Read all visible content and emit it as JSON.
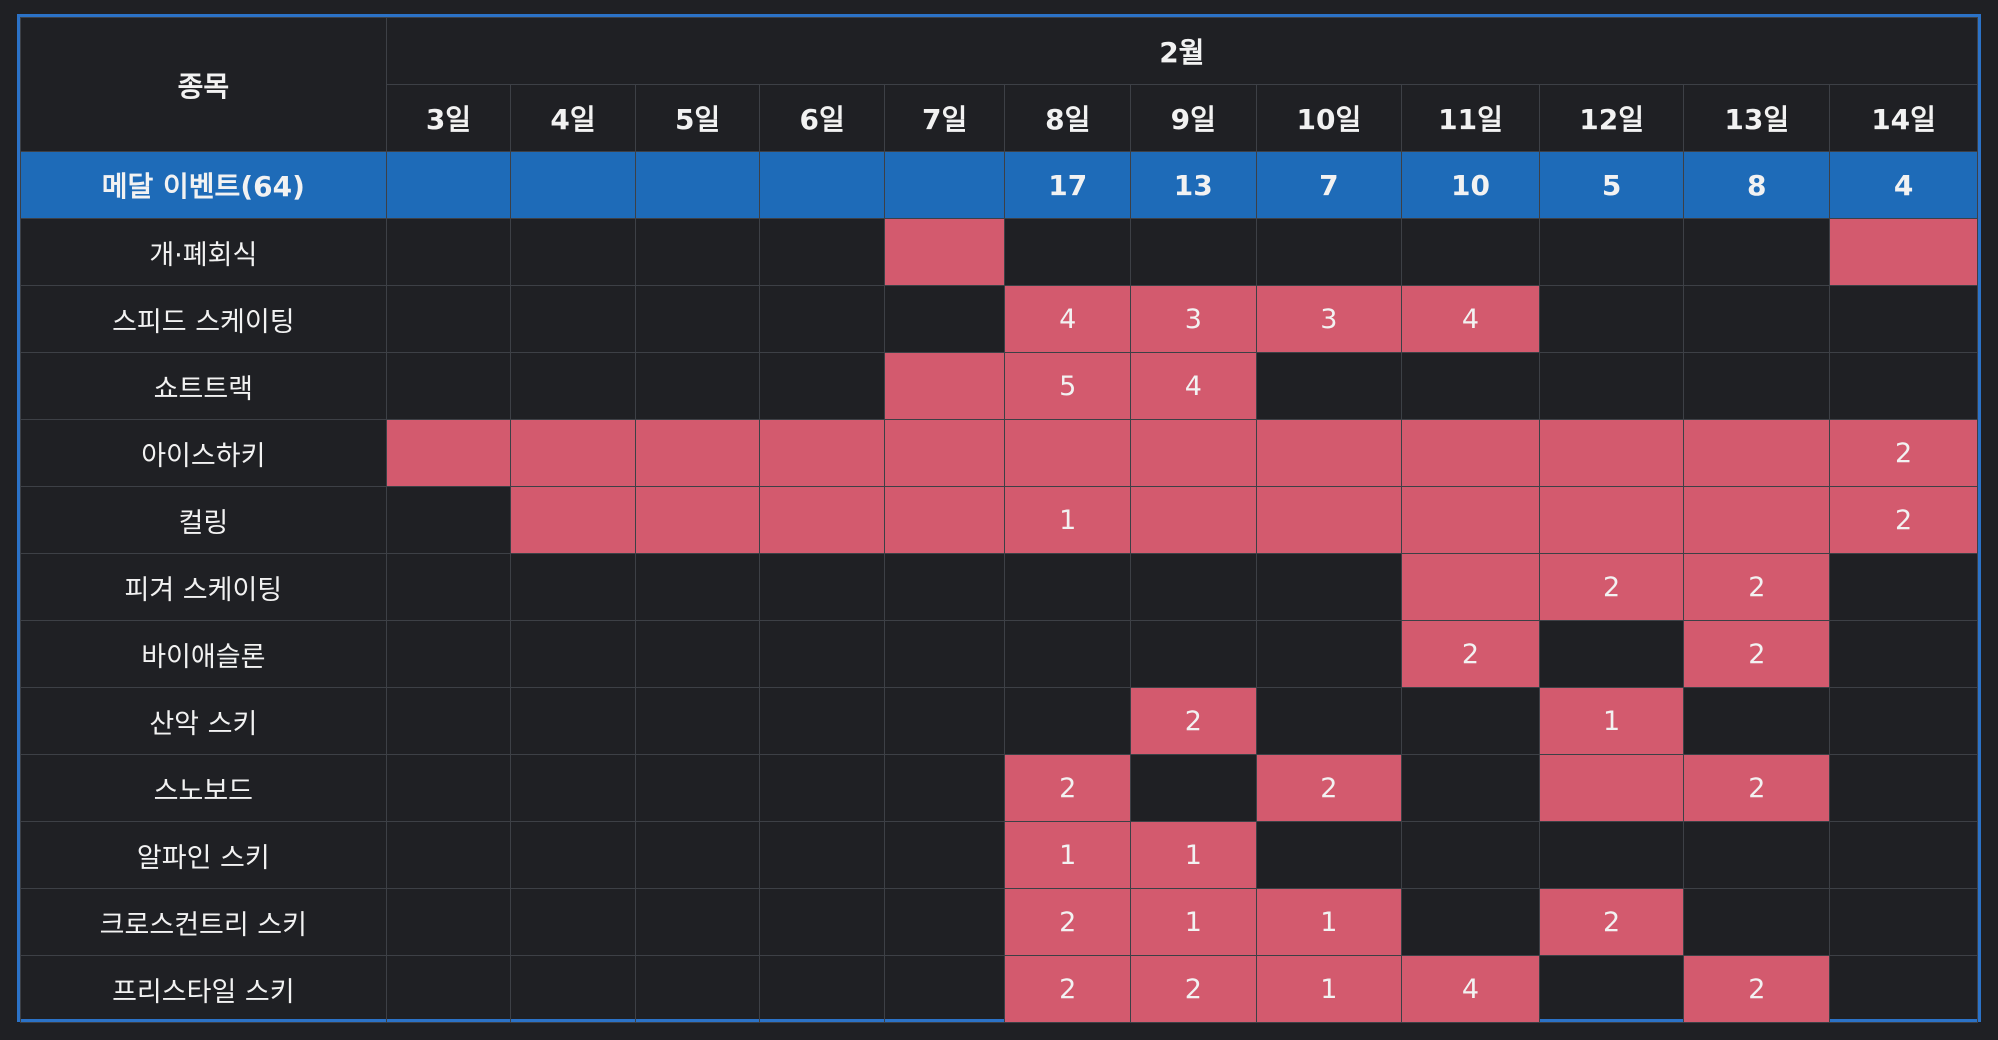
{
  "header": {
    "sport_label": "종목",
    "month_label": "2월",
    "days": [
      "3일",
      "4일",
      "5일",
      "6일",
      "7일",
      "8일",
      "9일",
      "10일",
      "11일",
      "12일",
      "13일",
      "14일"
    ]
  },
  "medal_row": {
    "label": "메달 이벤트(64)",
    "values": [
      "",
      "",
      "",
      "",
      "",
      "17",
      "13",
      "7",
      "10",
      "5",
      "8",
      "4"
    ]
  },
  "rows": [
    {
      "name": "개·폐회식",
      "cells": [
        {
          "on": false,
          "v": ""
        },
        {
          "on": false,
          "v": ""
        },
        {
          "on": false,
          "v": ""
        },
        {
          "on": false,
          "v": ""
        },
        {
          "on": true,
          "v": ""
        },
        {
          "on": false,
          "v": ""
        },
        {
          "on": false,
          "v": ""
        },
        {
          "on": false,
          "v": ""
        },
        {
          "on": false,
          "v": ""
        },
        {
          "on": false,
          "v": ""
        },
        {
          "on": false,
          "v": ""
        },
        {
          "on": true,
          "v": ""
        }
      ]
    },
    {
      "name": "스피드 스케이팅",
      "cells": [
        {
          "on": false,
          "v": ""
        },
        {
          "on": false,
          "v": ""
        },
        {
          "on": false,
          "v": ""
        },
        {
          "on": false,
          "v": ""
        },
        {
          "on": false,
          "v": ""
        },
        {
          "on": true,
          "v": "4"
        },
        {
          "on": true,
          "v": "3"
        },
        {
          "on": true,
          "v": "3"
        },
        {
          "on": true,
          "v": "4"
        },
        {
          "on": false,
          "v": ""
        },
        {
          "on": false,
          "v": ""
        },
        {
          "on": false,
          "v": ""
        }
      ]
    },
    {
      "name": "쇼트트랙",
      "cells": [
        {
          "on": false,
          "v": ""
        },
        {
          "on": false,
          "v": ""
        },
        {
          "on": false,
          "v": ""
        },
        {
          "on": false,
          "v": ""
        },
        {
          "on": true,
          "v": ""
        },
        {
          "on": true,
          "v": "5"
        },
        {
          "on": true,
          "v": "4"
        },
        {
          "on": false,
          "v": ""
        },
        {
          "on": false,
          "v": ""
        },
        {
          "on": false,
          "v": ""
        },
        {
          "on": false,
          "v": ""
        },
        {
          "on": false,
          "v": ""
        }
      ]
    },
    {
      "name": "아이스하키",
      "cells": [
        {
          "on": true,
          "v": ""
        },
        {
          "on": true,
          "v": ""
        },
        {
          "on": true,
          "v": ""
        },
        {
          "on": true,
          "v": ""
        },
        {
          "on": true,
          "v": ""
        },
        {
          "on": true,
          "v": ""
        },
        {
          "on": true,
          "v": ""
        },
        {
          "on": true,
          "v": ""
        },
        {
          "on": true,
          "v": ""
        },
        {
          "on": true,
          "v": ""
        },
        {
          "on": true,
          "v": ""
        },
        {
          "on": true,
          "v": "2"
        }
      ]
    },
    {
      "name": "컬링",
      "cells": [
        {
          "on": false,
          "v": ""
        },
        {
          "on": true,
          "v": ""
        },
        {
          "on": true,
          "v": ""
        },
        {
          "on": true,
          "v": ""
        },
        {
          "on": true,
          "v": ""
        },
        {
          "on": true,
          "v": "1"
        },
        {
          "on": true,
          "v": ""
        },
        {
          "on": true,
          "v": ""
        },
        {
          "on": true,
          "v": ""
        },
        {
          "on": true,
          "v": ""
        },
        {
          "on": true,
          "v": ""
        },
        {
          "on": true,
          "v": "2"
        }
      ]
    },
    {
      "name": "피겨 스케이팅",
      "cells": [
        {
          "on": false,
          "v": ""
        },
        {
          "on": false,
          "v": ""
        },
        {
          "on": false,
          "v": ""
        },
        {
          "on": false,
          "v": ""
        },
        {
          "on": false,
          "v": ""
        },
        {
          "on": false,
          "v": ""
        },
        {
          "on": false,
          "v": ""
        },
        {
          "on": false,
          "v": ""
        },
        {
          "on": true,
          "v": ""
        },
        {
          "on": true,
          "v": "2"
        },
        {
          "on": true,
          "v": "2"
        },
        {
          "on": false,
          "v": ""
        }
      ]
    },
    {
      "name": "바이애슬론",
      "cells": [
        {
          "on": false,
          "v": ""
        },
        {
          "on": false,
          "v": ""
        },
        {
          "on": false,
          "v": ""
        },
        {
          "on": false,
          "v": ""
        },
        {
          "on": false,
          "v": ""
        },
        {
          "on": false,
          "v": ""
        },
        {
          "on": false,
          "v": ""
        },
        {
          "on": false,
          "v": ""
        },
        {
          "on": true,
          "v": "2"
        },
        {
          "on": false,
          "v": ""
        },
        {
          "on": true,
          "v": "2"
        },
        {
          "on": false,
          "v": ""
        }
      ]
    },
    {
      "name": "산악 스키",
      "cells": [
        {
          "on": false,
          "v": ""
        },
        {
          "on": false,
          "v": ""
        },
        {
          "on": false,
          "v": ""
        },
        {
          "on": false,
          "v": ""
        },
        {
          "on": false,
          "v": ""
        },
        {
          "on": false,
          "v": ""
        },
        {
          "on": true,
          "v": "2"
        },
        {
          "on": false,
          "v": ""
        },
        {
          "on": false,
          "v": ""
        },
        {
          "on": true,
          "v": "1"
        },
        {
          "on": false,
          "v": ""
        },
        {
          "on": false,
          "v": ""
        }
      ]
    },
    {
      "name": "스노보드",
      "cells": [
        {
          "on": false,
          "v": ""
        },
        {
          "on": false,
          "v": ""
        },
        {
          "on": false,
          "v": ""
        },
        {
          "on": false,
          "v": ""
        },
        {
          "on": false,
          "v": ""
        },
        {
          "on": true,
          "v": "2"
        },
        {
          "on": false,
          "v": ""
        },
        {
          "on": true,
          "v": "2"
        },
        {
          "on": false,
          "v": ""
        },
        {
          "on": true,
          "v": ""
        },
        {
          "on": true,
          "v": "2"
        },
        {
          "on": false,
          "v": ""
        }
      ]
    },
    {
      "name": "알파인 스키",
      "cells": [
        {
          "on": false,
          "v": ""
        },
        {
          "on": false,
          "v": ""
        },
        {
          "on": false,
          "v": ""
        },
        {
          "on": false,
          "v": ""
        },
        {
          "on": false,
          "v": ""
        },
        {
          "on": true,
          "v": "1"
        },
        {
          "on": true,
          "v": "1"
        },
        {
          "on": false,
          "v": ""
        },
        {
          "on": false,
          "v": ""
        },
        {
          "on": false,
          "v": ""
        },
        {
          "on": false,
          "v": ""
        },
        {
          "on": false,
          "v": ""
        }
      ]
    },
    {
      "name": "크로스컨트리 스키",
      "cells": [
        {
          "on": false,
          "v": ""
        },
        {
          "on": false,
          "v": ""
        },
        {
          "on": false,
          "v": ""
        },
        {
          "on": false,
          "v": ""
        },
        {
          "on": false,
          "v": ""
        },
        {
          "on": true,
          "v": "2"
        },
        {
          "on": true,
          "v": "1"
        },
        {
          "on": true,
          "v": "1"
        },
        {
          "on": false,
          "v": ""
        },
        {
          "on": true,
          "v": "2"
        },
        {
          "on": false,
          "v": ""
        },
        {
          "on": false,
          "v": ""
        }
      ]
    },
    {
      "name": "프리스타일 스키",
      "cells": [
        {
          "on": false,
          "v": ""
        },
        {
          "on": false,
          "v": ""
        },
        {
          "on": false,
          "v": ""
        },
        {
          "on": false,
          "v": ""
        },
        {
          "on": false,
          "v": ""
        },
        {
          "on": true,
          "v": "2"
        },
        {
          "on": true,
          "v": "2"
        },
        {
          "on": true,
          "v": "1"
        },
        {
          "on": true,
          "v": "4"
        },
        {
          "on": false,
          "v": ""
        },
        {
          "on": true,
          "v": "2"
        },
        {
          "on": false,
          "v": ""
        }
      ]
    }
  ],
  "colors": {
    "background": "#1f2024",
    "frame_border": "#2b72c7",
    "medal_row_bg": "#1e6bb8",
    "scheduled_cell_bg": "#d35a6e",
    "grid_line": "#3d4046",
    "text": "#f2f2f2"
  }
}
